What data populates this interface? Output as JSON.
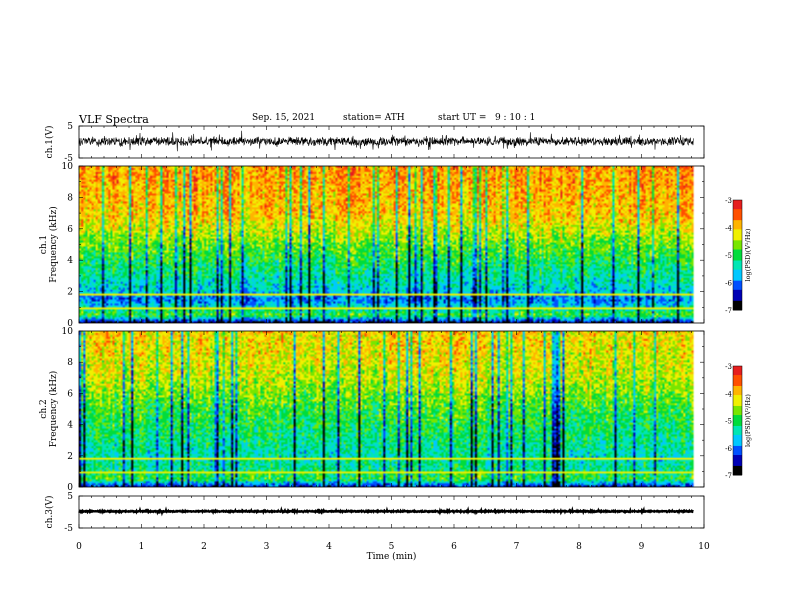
{
  "header": {
    "title": "VLF Spectra",
    "date": "Sep. 15, 2021",
    "station": "station= ATH",
    "start_ut": "start UT =   9 : 10 : 1"
  },
  "chart_data": [
    {
      "type": "line",
      "id": "ch1-waveform",
      "ylabel": "ch.1(V)",
      "ylim": [
        -5,
        5
      ],
      "y_ticks": [
        "5",
        "-5"
      ],
      "xlim": [
        0,
        10
      ],
      "x_end": 9.83,
      "baseline": 0.2,
      "amplitude": 1.3,
      "color": "#000000"
    },
    {
      "type": "heatmap",
      "id": "ch1-spectrogram",
      "ylabel": "ch.1\nFrequency (kHz)",
      "ylim": [
        0,
        10
      ],
      "y_ticks": [
        "0",
        "2",
        "4",
        "6",
        "8",
        "10"
      ],
      "xlim": [
        0,
        10
      ],
      "x_end": 9.83,
      "colorbar": {
        "label": "log(PSD)(V²/Hz)",
        "range": [
          -7,
          -3
        ],
        "ticks": [
          "-3",
          "-4",
          "-5",
          "-6",
          "-7"
        ]
      },
      "band_profile": [
        {
          "freq_khz": 10,
          "log_psd": -3.8
        },
        {
          "freq_khz": 7,
          "log_psd": -4.0
        },
        {
          "freq_khz": 5,
          "log_psd": -4.7
        },
        {
          "freq_khz": 3,
          "log_psd": -5.3
        },
        {
          "freq_khz": 2,
          "log_psd": -5.6
        },
        {
          "freq_khz": 1.5,
          "log_psd": -6.0
        },
        {
          "freq_khz": 1,
          "log_psd": -5.5
        },
        {
          "freq_khz": 0.5,
          "log_psd": -4.8
        },
        {
          "freq_khz": 0,
          "log_psd": -6.8
        }
      ]
    },
    {
      "type": "heatmap",
      "id": "ch2-spectrogram",
      "ylabel": "ch.2\nFrequency (kHz)",
      "ylim": [
        0,
        10
      ],
      "y_ticks": [
        "0",
        "2",
        "4",
        "6",
        "8",
        "10"
      ],
      "xlim": [
        0,
        10
      ],
      "x_end": 9.83,
      "colorbar": {
        "label": "log(PSD)(V²/Hz)",
        "range": [
          -7,
          -3
        ],
        "ticks": [
          "-3",
          "-4",
          "-5",
          "-6",
          "-7"
        ]
      },
      "band_profile": [
        {
          "freq_khz": 10,
          "log_psd": -4.1
        },
        {
          "freq_khz": 7,
          "log_psd": -4.4
        },
        {
          "freq_khz": 5,
          "log_psd": -4.9
        },
        {
          "freq_khz": 3,
          "log_psd": -5.2
        },
        {
          "freq_khz": 2,
          "log_psd": -5.4
        },
        {
          "freq_khz": 1,
          "log_psd": -5.2
        },
        {
          "freq_khz": 0.5,
          "log_psd": -4.9
        },
        {
          "freq_khz": 0,
          "log_psd": -6.5
        }
      ]
    },
    {
      "type": "line",
      "id": "ch3-waveform",
      "ylabel": "ch.3(V)",
      "ylim": [
        -5,
        5
      ],
      "y_ticks": [
        "5",
        "-5"
      ],
      "xlim": [
        0,
        10
      ],
      "x_end": 9.83,
      "baseline": 0.2,
      "amplitude": 0.15,
      "color": "#000000"
    }
  ],
  "x_axis": {
    "label": "Time (min)",
    "ticks": [
      "0",
      "1",
      "2",
      "3",
      "4",
      "5",
      "6",
      "7",
      "8",
      "9",
      "10"
    ]
  },
  "colormap": [
    "#000000",
    "#0000b4",
    "#0050ff",
    "#00c8ff",
    "#00e6b4",
    "#00dc3c",
    "#78e600",
    "#f0f000",
    "#ffb400",
    "#ff5000",
    "#e61e1e",
    "#ffffff"
  ]
}
